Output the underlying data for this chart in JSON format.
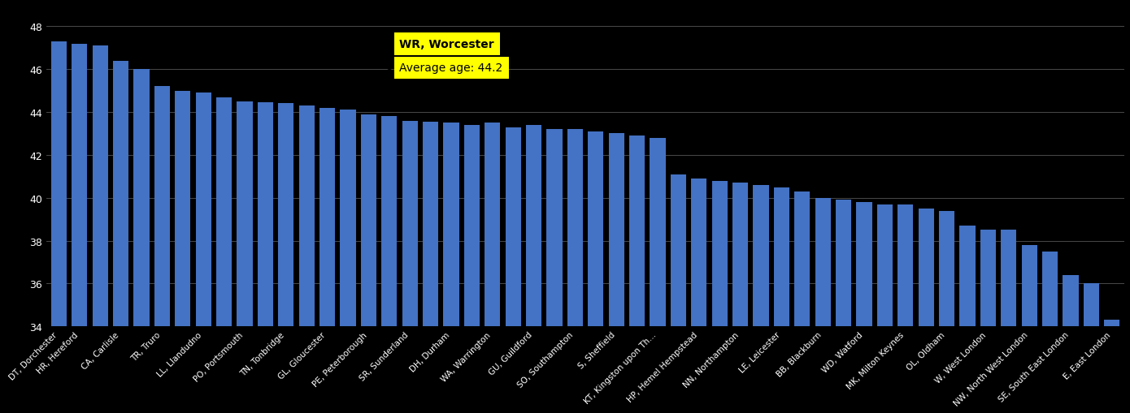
{
  "categories": [
    "DT, Dorchester",
    "HR, Hereford",
    "",
    "CA, Carlisle",
    "",
    "TR, Truro",
    "",
    "LL, Llandudno",
    "",
    "PO, Portsmouth",
    "",
    "TN, Tonbridge",
    "",
    "GL, Gloucester",
    "",
    "PE, Peterborough",
    "",
    "SR, Sunderland",
    "",
    "DH, Durham",
    "",
    "WA, Warrington",
    "",
    "GU, Guildford",
    "",
    "SO, Southampton",
    "",
    "S, Sheffield",
    "",
    "KT, Kingston upon Th...",
    "",
    "HP, Hemel Hempstead",
    "",
    "NN, Northampton",
    "",
    "LE, Leicester",
    "",
    "BB, Blackburn",
    "",
    "WD, Watford",
    "",
    "MK, Milton Keynes",
    "",
    "OL, Oldham",
    "",
    "W, West London",
    "",
    "NW, North West London",
    "",
    "SE, South East London",
    "",
    "E, East London"
  ],
  "values": [
    47.3,
    47.2,
    47.1,
    46.4,
    46.0,
    45.2,
    45.0,
    44.9,
    44.7,
    44.5,
    44.45,
    44.4,
    44.3,
    44.2,
    44.1,
    43.9,
    43.8,
    43.6,
    43.55,
    43.5,
    43.4,
    43.5,
    43.3,
    43.4,
    43.2,
    43.2,
    43.1,
    43.0,
    42.9,
    42.8,
    41.1,
    40.9,
    40.8,
    40.7,
    40.6,
    40.5,
    40.3,
    40.0,
    39.9,
    39.8,
    39.7,
    39.7,
    39.5,
    39.4,
    38.7,
    38.5,
    38.5,
    37.8,
    37.5,
    36.4,
    36.0,
    34.3
  ],
  "highlighted_bar_index": 13,
  "annotation_title": "WR, Worcester",
  "annotation_label": "Average age: ",
  "annotation_value": "44.2",
  "bar_color": "#4472C4",
  "background_color": "#000000",
  "text_color": "#ffffff",
  "grid_color": "#555555",
  "annotation_bg": "#ffff00",
  "ylim_min": 34,
  "ylim_max": 49.0,
  "yticks": [
    34,
    36,
    38,
    40,
    42,
    44,
    46,
    48
  ]
}
